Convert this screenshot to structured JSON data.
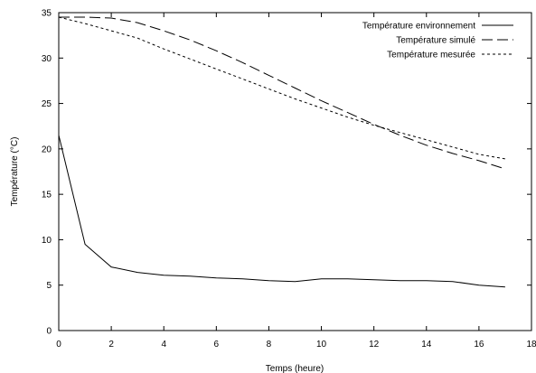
{
  "chart_data": {
    "type": "line",
    "title": "",
    "xlabel": "Temps (heure)",
    "ylabel": "Température (°C)",
    "xlim": [
      0,
      18
    ],
    "ylim": [
      0,
      35
    ],
    "x_ticks": [
      0,
      2,
      4,
      6,
      8,
      10,
      12,
      14,
      16,
      18
    ],
    "y_ticks": [
      0,
      5,
      10,
      15,
      20,
      25,
      30,
      35
    ],
    "grid": false,
    "legend_position": "top-right",
    "series": [
      {
        "name": "Température environnement",
        "style": "solid",
        "x": [
          0,
          1,
          2,
          3,
          4,
          5,
          6,
          7,
          8,
          9,
          10,
          11,
          12,
          13,
          14,
          15,
          16,
          17
        ],
        "y": [
          21.5,
          9.5,
          7.0,
          6.4,
          6.1,
          6.0,
          5.8,
          5.7,
          5.5,
          5.4,
          5.7,
          5.7,
          5.6,
          5.5,
          5.5,
          5.4,
          5.0,
          4.8
        ]
      },
      {
        "name": "Température simulé",
        "style": "long-dash",
        "x": [
          0,
          1,
          2,
          3,
          4,
          5,
          6,
          7,
          8,
          9,
          10,
          11,
          12,
          13,
          14,
          15,
          16,
          17
        ],
        "y": [
          34.5,
          34.5,
          34.4,
          33.9,
          33.0,
          32.0,
          30.8,
          29.5,
          28.1,
          26.7,
          25.3,
          24.0,
          22.7,
          21.5,
          20.4,
          19.5,
          18.7,
          17.8
        ]
      },
      {
        "name": "Température mesurée",
        "style": "short-dash",
        "x": [
          0,
          1,
          2,
          3,
          4,
          5,
          6,
          7,
          8,
          9,
          10,
          11,
          12,
          13,
          14,
          15,
          16,
          17
        ],
        "y": [
          34.5,
          33.8,
          33.0,
          32.2,
          31.0,
          29.9,
          28.8,
          27.7,
          26.6,
          25.5,
          24.5,
          23.5,
          22.6,
          21.8,
          21.0,
          20.2,
          19.4,
          18.9
        ]
      }
    ]
  }
}
